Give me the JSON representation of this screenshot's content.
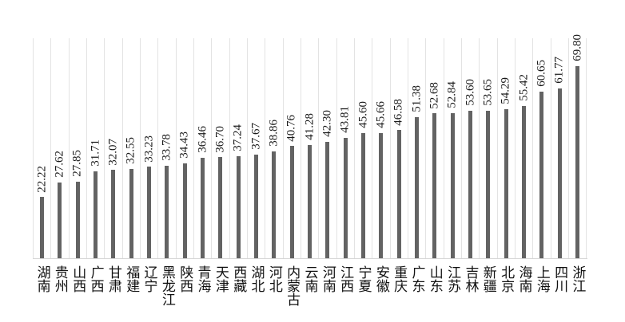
{
  "chart_data": {
    "type": "bar",
    "title": "",
    "xlabel": "",
    "ylabel": "",
    "categories": [
      "湖南",
      "贵州",
      "山西",
      "广西",
      "甘肃",
      "福建",
      "辽宁",
      "黑龙江",
      "陕西",
      "青海",
      "天津",
      "西藏",
      "湖北",
      "河北",
      "内蒙古",
      "云南",
      "河南",
      "江西",
      "宁夏",
      "安徽",
      "重庆",
      "广东",
      "山东",
      "江苏",
      "吉林",
      "新疆",
      "北京",
      "海南",
      "上海",
      "四川",
      "浙江"
    ],
    "values": [
      22.22,
      27.62,
      27.85,
      31.71,
      32.07,
      32.55,
      33.23,
      33.78,
      34.43,
      36.46,
      36.7,
      37.24,
      37.67,
      38.86,
      40.76,
      41.28,
      42.3,
      43.81,
      45.6,
      45.66,
      46.58,
      51.38,
      52.68,
      52.84,
      53.6,
      53.65,
      54.29,
      55.42,
      60.65,
      61.77,
      69.8
    ],
    "value_label_format": "2-decimals",
    "value_label_rotation_deg": -90,
    "category_label_orientation": "vertical-upright",
    "ylim": [
      0,
      80
    ],
    "grid": "vertical-lines-between-categories",
    "legend_position": "none",
    "bar_color": "#636363",
    "gridline_color": "#e3e3e3",
    "axis_line_color": "#d6d6d6",
    "label_color": "#1a1a1a",
    "background_color": "#ffffff"
  }
}
